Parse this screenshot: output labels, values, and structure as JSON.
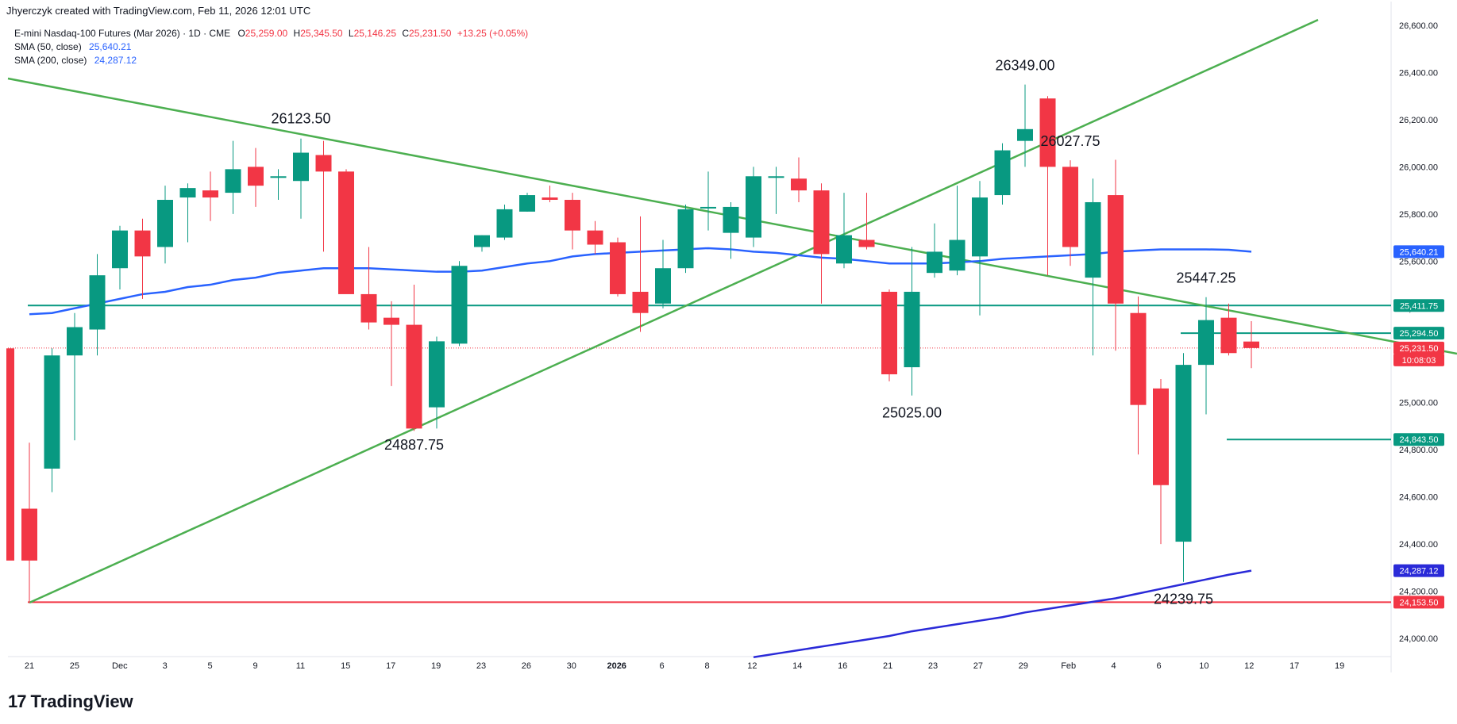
{
  "header": {
    "created_text": "Jhyerczyk created with TradingView.com, Feb 11, 2026 12:01 UTC"
  },
  "legend": {
    "symbol": "E-mini Nasdaq-100 Futures (Mar 2026) · 1D · CME",
    "o_label": "O",
    "o_value": "25,259.00",
    "h_label": "H",
    "h_value": "25,345.50",
    "l_label": "L",
    "l_value": "25,146.25",
    "c_label": "C",
    "c_value": "25,231.50",
    "change": "+13.25 (+0.05%)",
    "sma50_label": "SMA (50, close)",
    "sma50_value": "25,640.21",
    "sma200_label": "SMA (200, close)",
    "sma200_value": "24,287.12"
  },
  "footer": {
    "brand": "TradingView",
    "logo_glyph": "17"
  },
  "colors": {
    "up": "#089981",
    "down": "#f23645",
    "sma50": "#2962ff",
    "sma200": "#2a2ad8",
    "trend": "#4caf50",
    "hline_green": "#089981",
    "hline_red": "#f23645"
  },
  "chart_data": {
    "type": "candlestick",
    "y_ticks": [
      "26,600.00",
      "26,400.00",
      "26,200.00",
      "26,000.00",
      "25,800.00",
      "25,600.00",
      "25,400.00",
      "25,200.00",
      "25,000.00",
      "24,800.00",
      "24,600.00",
      "24,400.00",
      "24,200.00",
      "24,000.00"
    ],
    "ylim": [
      23900,
      26650
    ],
    "x_ticks": [
      "21",
      "25",
      "Dec",
      "3",
      "5",
      "9",
      "11",
      "15",
      "17",
      "19",
      "23",
      "26",
      "30",
      "2026",
      "6",
      "8",
      "12",
      "14",
      "16",
      "21",
      "23",
      "27",
      "29",
      "Feb",
      "4",
      "6",
      "10",
      "12",
      "17",
      "19"
    ],
    "candles": [
      {
        "o": 24550,
        "h": 24830,
        "l": 24150,
        "c": 24330
      },
      {
        "o": 24720,
        "h": 25230,
        "l": 24620,
        "c": 25200
      },
      {
        "o": 25200,
        "h": 25380,
        "l": 24840,
        "c": 25320
      },
      {
        "o": 25310,
        "h": 25630,
        "l": 25200,
        "c": 25540
      },
      {
        "o": 25570,
        "h": 25750,
        "l": 25480,
        "c": 25730
      },
      {
        "o": 25730,
        "h": 25780,
        "l": 25440,
        "c": 25620
      },
      {
        "o": 25660,
        "h": 25920,
        "l": 25590,
        "c": 25860
      },
      {
        "o": 25870,
        "h": 25930,
        "l": 25680,
        "c": 25910
      },
      {
        "o": 25900,
        "h": 25980,
        "l": 25770,
        "c": 25870
      },
      {
        "o": 25890,
        "h": 26110,
        "l": 25800,
        "c": 25990
      },
      {
        "o": 26000,
        "h": 26080,
        "l": 25830,
        "c": 25920
      },
      {
        "o": 25960,
        "h": 25990,
        "l": 25860,
        "c": 25960
      },
      {
        "o": 25940,
        "h": 26120,
        "l": 25780,
        "c": 26060
      },
      {
        "o": 26050,
        "h": 26110,
        "l": 25640,
        "c": 25980
      },
      {
        "o": 25980,
        "h": 25990,
        "l": 25470,
        "c": 25460
      },
      {
        "o": 25460,
        "h": 25660,
        "l": 25310,
        "c": 25340
      },
      {
        "o": 25360,
        "h": 25430,
        "l": 25070,
        "c": 25330
      },
      {
        "o": 25330,
        "h": 25500,
        "l": 24880,
        "c": 24890
      },
      {
        "o": 24980,
        "h": 25280,
        "l": 24890,
        "c": 25260
      },
      {
        "o": 25250,
        "h": 25600,
        "l": 25240,
        "c": 25580
      },
      {
        "o": 25660,
        "h": 25710,
        "l": 25640,
        "c": 25710
      },
      {
        "o": 25700,
        "h": 25840,
        "l": 25690,
        "c": 25820
      },
      {
        "o": 25810,
        "h": 25890,
        "l": 25810,
        "c": 25880
      },
      {
        "o": 25870,
        "h": 25920,
        "l": 25850,
        "c": 25860
      },
      {
        "o": 25860,
        "h": 25890,
        "l": 25650,
        "c": 25730
      },
      {
        "o": 25730,
        "h": 25770,
        "l": 25630,
        "c": 25670
      },
      {
        "o": 25680,
        "h": 25700,
        "l": 25450,
        "c": 25460
      },
      {
        "o": 25470,
        "h": 25790,
        "l": 25300,
        "c": 25380
      },
      {
        "o": 25420,
        "h": 25690,
        "l": 25400,
        "c": 25570
      },
      {
        "o": 25570,
        "h": 25840,
        "l": 25550,
        "c": 25820
      },
      {
        "o": 25830,
        "h": 25980,
        "l": 25730,
        "c": 25830
      },
      {
        "o": 25720,
        "h": 25850,
        "l": 25610,
        "c": 25830
      },
      {
        "o": 25700,
        "h": 26000,
        "l": 25660,
        "c": 25960
      },
      {
        "o": 25960,
        "h": 26000,
        "l": 25800,
        "c": 25960
      },
      {
        "o": 25950,
        "h": 26040,
        "l": 25850,
        "c": 25900
      },
      {
        "o": 25900,
        "h": 25930,
        "l": 25420,
        "c": 25630
      },
      {
        "o": 25590,
        "h": 25890,
        "l": 25570,
        "c": 25710
      },
      {
        "o": 25690,
        "h": 25890,
        "l": 25650,
        "c": 25660
      },
      {
        "o": 25470,
        "h": 25480,
        "l": 25090,
        "c": 25120
      },
      {
        "o": 25150,
        "h": 25660,
        "l": 25030,
        "c": 25470
      },
      {
        "o": 25550,
        "h": 25760,
        "l": 25530,
        "c": 25640
      },
      {
        "o": 25560,
        "h": 25920,
        "l": 25540,
        "c": 25690
      },
      {
        "o": 25620,
        "h": 25940,
        "l": 25370,
        "c": 25870
      },
      {
        "o": 25880,
        "h": 26100,
        "l": 25840,
        "c": 26070
      },
      {
        "o": 26110,
        "h": 26349,
        "l": 26000,
        "c": 26160
      },
      {
        "o": 26290,
        "h": 26300,
        "l": 25540,
        "c": 26000
      },
      {
        "o": 26000,
        "h": 26027.75,
        "l": 25580,
        "c": 25660
      },
      {
        "o": 25530,
        "h": 25950,
        "l": 25200,
        "c": 25850
      },
      {
        "o": 25880,
        "h": 26030,
        "l": 25220,
        "c": 25420
      },
      {
        "o": 25380,
        "h": 25450,
        "l": 24780,
        "c": 24990
      },
      {
        "o": 25060,
        "h": 25100,
        "l": 24400,
        "c": 24650
      },
      {
        "o": 24410,
        "h": 25210,
        "l": 24239.75,
        "c": 25160
      },
      {
        "o": 25160,
        "h": 25447.25,
        "l": 24950,
        "c": 25350
      },
      {
        "o": 25360,
        "h": 25420,
        "l": 25200,
        "c": 25210
      },
      {
        "o": 25259,
        "h": 25345.5,
        "l": 25146.25,
        "c": 25231.5
      }
    ],
    "annotations": [
      {
        "text": "26123.50",
        "value": 26123.5
      },
      {
        "text": "24887.75",
        "value": 24887.75
      },
      {
        "text": "26349.00",
        "value": 26349
      },
      {
        "text": "26027.75",
        "value": 26027.75
      },
      {
        "text": "25025.00",
        "value": 25025
      },
      {
        "text": "25447.25",
        "value": 25447.25
      },
      {
        "text": "24239.75",
        "value": 24239.75
      }
    ],
    "price_labels": [
      {
        "text": "25,640.21",
        "value": 25640.21,
        "color": "#2962ff"
      },
      {
        "text": "25,411.75",
        "value": 25411.75,
        "color": "#089981"
      },
      {
        "text": "25,294.50",
        "value": 25294.5,
        "color": "#089981"
      },
      {
        "text": "25,231.50",
        "value": 25231.5,
        "color": "#f23645"
      },
      {
        "text": "10:08:03",
        "value": 25181,
        "color": "#f23645"
      },
      {
        "text": "24,843.50",
        "value": 24843.5,
        "color": "#089981"
      },
      {
        "text": "24,287.12",
        "value": 24287.12,
        "color": "#2a2ad8"
      },
      {
        "text": "24,153.50",
        "value": 24153.5,
        "color": "#f23645"
      }
    ],
    "horizontal_levels": [
      {
        "value": 25411.75,
        "color": "#089981"
      },
      {
        "value": 25294.5,
        "color": "#089981"
      },
      {
        "value": 24843.5,
        "color": "#089981"
      },
      {
        "value": 24153.5,
        "color": "#f23645"
      }
    ],
    "series": [
      {
        "name": "SMA (50, close)",
        "values": [
          25375,
          25380,
          25400,
          25420,
          25440,
          25460,
          25470,
          25490,
          25500,
          25520,
          25530,
          25550,
          25560,
          25570,
          25570,
          25570,
          25565,
          25560,
          25555,
          25555,
          25560,
          25575,
          25590,
          25600,
          25620,
          25630,
          25635,
          25640,
          25645,
          25650,
          25655,
          25650,
          25640,
          25635,
          25625,
          25615,
          25610,
          25600,
          25590,
          25590,
          25590,
          25595,
          25600,
          25610,
          25615,
          25620,
          25625,
          25630,
          25640,
          25645,
          25650,
          25650,
          25650,
          25648,
          25640.21
        ]
      },
      {
        "name": "SMA (200, close)",
        "values": [
          23920,
          23935,
          23950,
          23965,
          23980,
          23995,
          24010,
          24030,
          24045,
          24060,
          24075,
          24090,
          24110,
          24125,
          24140,
          24155,
          24170,
          24190,
          24210,
          24230,
          24250,
          24270,
          24287.12
        ]
      }
    ]
  }
}
